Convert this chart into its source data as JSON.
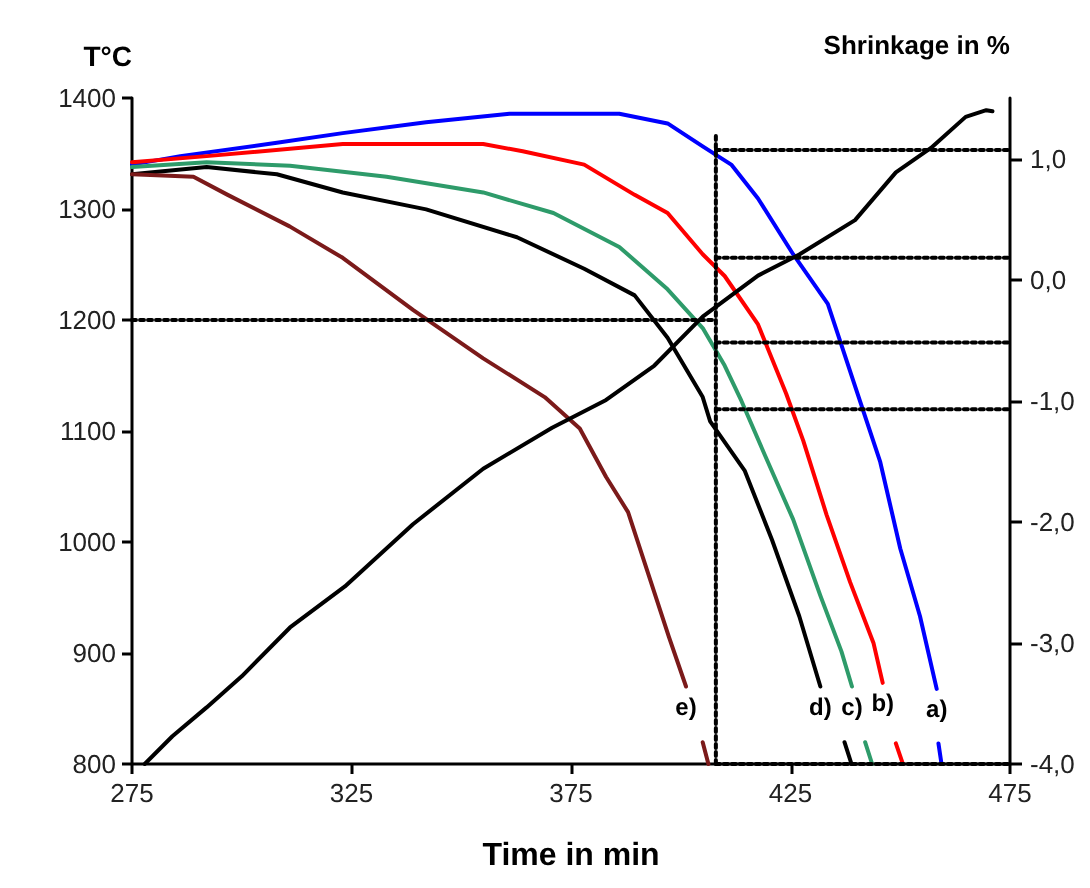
{
  "chart_data": {
    "type": "line",
    "xlabel": "Time in min",
    "ylabel": "T°C",
    "y2label": "Shrinkage in %",
    "xlim": [
      275,
      475
    ],
    "xticks": [
      275,
      325,
      375,
      425,
      475
    ],
    "ylim": [
      800,
      1400
    ],
    "yticks": [
      800,
      900,
      1000,
      1100,
      1200,
      1300,
      1400
    ],
    "y2lim": [
      -4,
      1.5
    ],
    "y2ticks": [
      {
        "value": -4,
        "label": "-4,0"
      },
      {
        "value": -3,
        "label": "-3,0"
      },
      {
        "value": -2,
        "label": "-2,0"
      },
      {
        "value": -1,
        "label": "-1,0"
      },
      {
        "value": 0,
        "label": "0,0"
      },
      {
        "value": 1,
        "label": "1,0"
      }
    ],
    "grid": false,
    "marker": "none",
    "line_style": "solid",
    "series": [
      {
        "name": "a)",
        "color": "#0000ff",
        "axis": "y2",
        "x": [
          275,
          286,
          308,
          323,
          342,
          361,
          386,
          397,
          405,
          411.5,
          417.6,
          425.6,
          433.5,
          439.7,
          445.4,
          450,
          454.5,
          458.3,
          458.5,
          458.7,
          459.4
        ],
        "values": [
          0.95,
          1.02,
          1.13,
          1.21,
          1.3,
          1.37,
          1.37,
          1.29,
          1.1,
          0.95,
          0.67,
          0.21,
          -0.2,
          -0.88,
          -1.5,
          -2.22,
          -2.78,
          -3.38,
          null,
          -3.83,
          -4.0
        ]
      },
      {
        "name": "b)",
        "color": "#ff0000",
        "axis": "y2",
        "x": [
          275,
          292,
          323,
          355,
          364,
          378,
          389.5,
          397,
          405,
          410,
          417.6,
          424,
          427.9,
          433.2,
          438.6,
          443.9,
          446,
          447.5,
          449,
          450.6
        ],
        "values": [
          0.97,
          1.02,
          1.12,
          1.12,
          1.06,
          0.95,
          0.7,
          0.55,
          0.21,
          0.03,
          -0.37,
          -0.94,
          -1.33,
          -1.94,
          -2.5,
          -3.0,
          -3.33,
          null,
          -3.83,
          -4.0
        ]
      },
      {
        "name": "c)",
        "color": "#2e9b6a",
        "axis": "y2",
        "x": [
          275,
          292,
          311,
          333,
          355,
          371,
          386,
          397,
          405,
          410,
          413.8,
          419.3,
          425.6,
          431.8,
          436.6,
          439,
          440.5,
          442,
          443.6
        ],
        "values": [
          0.93,
          0.97,
          0.94,
          0.85,
          0.72,
          0.55,
          0.27,
          -0.08,
          -0.4,
          -0.71,
          -1.0,
          -1.46,
          -1.98,
          -2.61,
          -3.07,
          -3.36,
          null,
          -3.82,
          -4.0
        ]
      },
      {
        "name": "d)",
        "color": "#000000",
        "axis": "y2",
        "x": [
          275,
          292,
          308,
          323,
          342,
          362.7,
          378,
          389.5,
          397,
          405,
          406.7,
          414.6,
          420.8,
          427,
          431.8,
          434.5,
          437.3,
          438.9
        ],
        "values": [
          0.87,
          0.93,
          0.87,
          0.72,
          0.58,
          0.35,
          0.09,
          -0.13,
          -0.48,
          -0.97,
          -1.17,
          -1.58,
          -2.15,
          -2.78,
          -3.36,
          null,
          -3.82,
          -4.0
        ]
      },
      {
        "name": "e)",
        "color": "#7b1a1a",
        "axis": "y2",
        "x": [
          275,
          289,
          296.8,
          310.9,
          323,
          339,
          355,
          369,
          377,
          383,
          388,
          392.6,
          397.3,
          401.2,
          403,
          405,
          406.3
        ],
        "values": [
          0.87,
          0.85,
          0.7,
          0.44,
          0.18,
          -0.25,
          -0.65,
          -0.97,
          -1.23,
          -1.63,
          -1.92,
          -2.43,
          -2.95,
          -3.36,
          null,
          -3.82,
          -4.0
        ]
      },
      {
        "color": "#000000",
        "x": [
          277.9,
          284.2,
          292,
          300,
          311,
          323.5,
          339,
          355,
          370.7,
          383,
          394,
          405,
          417.6,
          427,
          439.7,
          449,
          457,
          464.9,
          469.6,
          471
        ],
        "values": [
          800,
          825,
          851,
          879,
          923,
          960,
          1016,
          1066,
          1103,
          1128,
          1159,
          1203,
          1240,
          1259,
          1290,
          1333,
          1355,
          1383,
          1389,
          1388
        ]
      },
      {
        "color": "#000000",
        "line_style": "dotted",
        "x": [
          275,
          408
        ],
        "values": [
          1200,
          1200
        ]
      },
      {
        "color": "#000000",
        "line_style": "dotted",
        "x": [
          408,
          408
        ],
        "values": [
          800,
          1369
        ]
      },
      {
        "color": "#000000",
        "line_style": "dotted",
        "axis": "y2",
        "x": [
          408,
          475
        ],
        "values": [
          1.07,
          1.07
        ]
      },
      {
        "color": "#000000",
        "line_style": "dotted",
        "axis": "y2",
        "x": [
          408,
          475
        ],
        "values": [
          0.18,
          0.18
        ]
      },
      {
        "color": "#000000",
        "line_style": "dotted",
        "axis": "y2",
        "x": [
          408,
          475
        ],
        "values": [
          -0.52,
          -0.52
        ]
      },
      {
        "color": "#000000",
        "line_style": "dotted",
        "axis": "y2",
        "x": [
          408,
          475
        ],
        "values": [
          -1.07,
          -1.07
        ]
      },
      {
        "color": "#000000",
        "line_style": "dotted",
        "axis": "y2",
        "x": [
          408,
          475
        ],
        "values": [
          -4.0,
          -4.0
        ]
      }
    ]
  }
}
